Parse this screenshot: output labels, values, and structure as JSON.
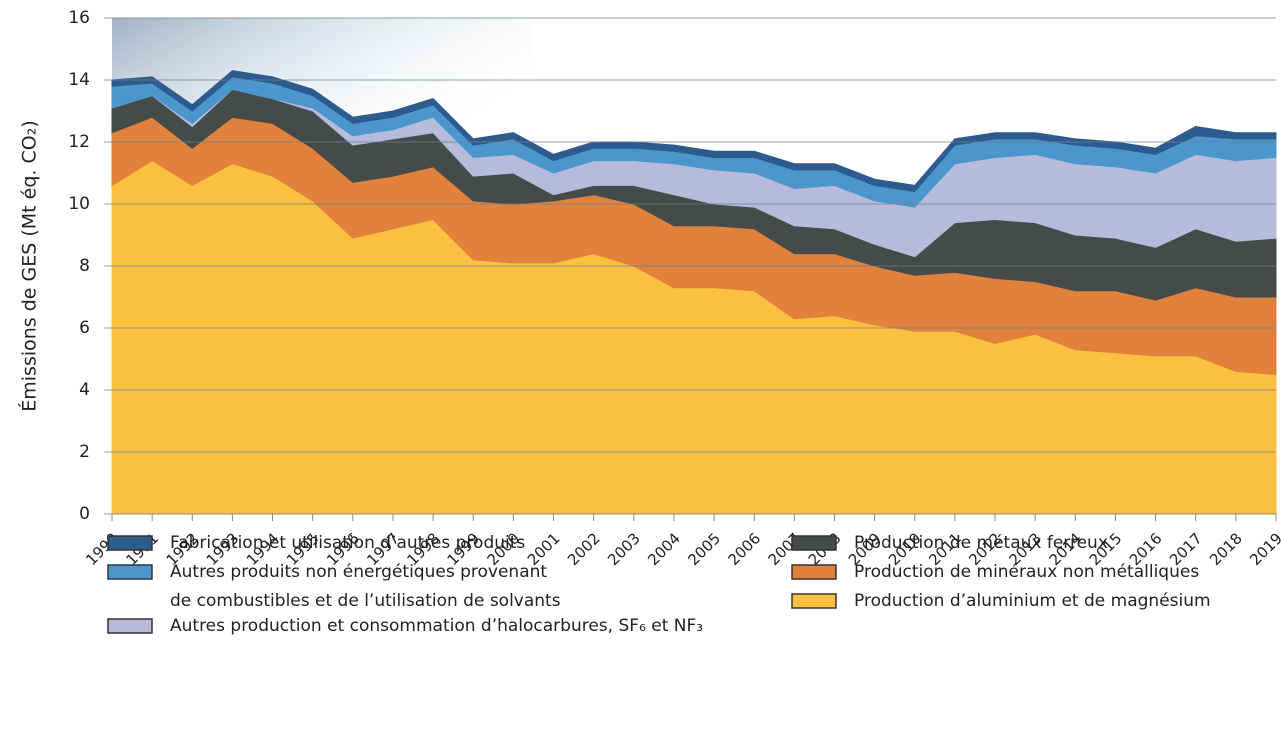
{
  "chart_data": {
    "type": "stacked_area",
    "y_label": "Émissions de GES (Mt éq. CO₂)",
    "categories": [
      "1990",
      "1991",
      "1992",
      "1993",
      "1994",
      "1995",
      "1996",
      "1997",
      "1998",
      "1999",
      "2000",
      "2001",
      "2002",
      "2003",
      "2004",
      "2005",
      "2006",
      "2007",
      "2008",
      "2009",
      "2010",
      "2011",
      "2012",
      "2013",
      "2014",
      "2015",
      "2016",
      "2017",
      "2018",
      "2019"
    ],
    "ylim": [
      0,
      16
    ],
    "yticks": [
      0,
      2,
      4,
      6,
      8,
      10,
      12,
      14,
      16
    ],
    "grid": true,
    "series": [
      {
        "name": "Fabrication et utilisation d’autres produits",
        "color": "#2d5b8e",
        "values": [
          0.2,
          0.2,
          0.2,
          0.2,
          0.2,
          0.2,
          0.2,
          0.2,
          0.2,
          0.2,
          0.2,
          0.2,
          0.2,
          0.2,
          0.2,
          0.2,
          0.2,
          0.2,
          0.2,
          0.2,
          0.2,
          0.2,
          0.2,
          0.2,
          0.2,
          0.2,
          0.2,
          0.3,
          0.2,
          0.2
        ]
      },
      {
        "name": "Autres produits non énergétiques provenant\nde combustibles et de l’utilisation de solvants",
        "color": "#4b97cd",
        "values": [
          0.7,
          0.4,
          0.4,
          0.4,
          0.5,
          0.4,
          0.4,
          0.4,
          0.4,
          0.4,
          0.5,
          0.4,
          0.4,
          0.4,
          0.4,
          0.4,
          0.5,
          0.6,
          0.5,
          0.5,
          0.5,
          0.6,
          0.6,
          0.5,
          0.6,
          0.6,
          0.6,
          0.6,
          0.7,
          0.6
        ]
      },
      {
        "name": "Autres production et consommation d’halocarbures, SF₆ et NF₃",
        "color": "#b8badb",
        "values": [
          0,
          0,
          0.1,
          0,
          0,
          0.1,
          0.3,
          0.3,
          0.5,
          0.6,
          0.6,
          0.7,
          0.8,
          0.8,
          1.0,
          1.1,
          1.1,
          1.2,
          1.4,
          1.4,
          1.6,
          1.9,
          2.0,
          2.2,
          2.3,
          2.3,
          2.4,
          2.4,
          2.6,
          2.6
        ]
      },
      {
        "name": "Production de métaux ferreux",
        "color": "#444b49",
        "values": [
          0.8,
          0.7,
          0.7,
          0.9,
          0.8,
          1.2,
          1.2,
          1.2,
          1.1,
          0.8,
          1.0,
          0.2,
          0.3,
          0.6,
          1.0,
          0.7,
          0.7,
          0.9,
          0.8,
          0.7,
          0.6,
          1.6,
          1.9,
          1.9,
          1.8,
          1.7,
          1.7,
          1.9,
          1.8,
          1.9
        ]
      },
      {
        "name": "Production de minéraux non métalliques",
        "color": "#e1813c",
        "values": [
          1.7,
          1.4,
          1.2,
          1.5,
          1.7,
          1.7,
          1.8,
          1.7,
          1.7,
          1.9,
          1.9,
          2.0,
          1.9,
          2.0,
          2.0,
          2.0,
          2.0,
          2.1,
          2.0,
          1.9,
          1.8,
          1.9,
          2.1,
          1.7,
          1.9,
          2.0,
          1.8,
          2.2,
          2.4,
          2.5
        ]
      },
      {
        "name": "Production d’aluminium et de magnésium",
        "color": "#fbc040",
        "values": [
          10.6,
          11.4,
          10.6,
          11.3,
          10.9,
          10.1,
          8.9,
          9.2,
          9.5,
          8.2,
          8.1,
          8.1,
          8.4,
          8.0,
          7.3,
          7.3,
          7.2,
          6.3,
          6.4,
          6.1,
          5.9,
          5.9,
          5.5,
          5.8,
          5.3,
          5.2,
          5.1,
          5.1,
          4.6,
          4.5
        ]
      }
    ]
  }
}
